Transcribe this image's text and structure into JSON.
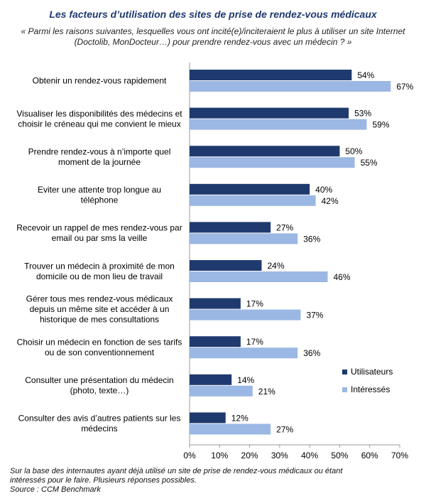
{
  "chart_data": {
    "type": "bar",
    "orientation": "horizontal",
    "title": "Les facteurs d’utilisation des sites de prise de rendez-vous médicaux",
    "subtitle": "« Parmi les raisons suivantes, lesquelles vous ont incité(e)/inciteraient le plus à utiliser un site Internet (Doctolib, MonDocteur…) pour prendre rendez-vous avec un médecin ? »",
    "categories": [
      [
        "Obtenir un rendez-vous rapidement"
      ],
      [
        "Visualiser les disponibilités des médecins et",
        "choisir le créneau qui me convient le mieux"
      ],
      [
        "Prendre rendez-vous à n’importe quel",
        "moment de la journée"
      ],
      [
        "Eviter une attente trop longue au",
        "téléphone"
      ],
      [
        "Recevoir un rappel de mes rendez-vous par",
        "email ou par sms la veille"
      ],
      [
        "Trouver un médecin à proximité de mon",
        "domicile ou de mon lieu de travail"
      ],
      [
        "Gérer tous mes rendez-vous médicaux",
        "depuis un même site et accéder à un",
        "historique de mes consultations"
      ],
      [
        "Choisir un médecin en fonction de ses tarifs",
        "ou de son conventionnement"
      ],
      [
        "Consulter une présentation du médecin",
        "(photo, texte…)"
      ],
      [
        "Consulter des avis d’autres patients sur les",
        "médecins"
      ]
    ],
    "series": [
      {
        "name": "Utilisateurs",
        "color": "#1f3a6e",
        "values": [
          54,
          53,
          50,
          40,
          27,
          24,
          17,
          17,
          14,
          12
        ]
      },
      {
        "name": "Intéressés",
        "color": "#9bb7e3",
        "values": [
          67,
          59,
          55,
          42,
          36,
          46,
          37,
          36,
          21,
          27
        ]
      }
    ],
    "xlim": [
      0,
      70
    ],
    "xticks": [
      0,
      10,
      20,
      30,
      40,
      50,
      60,
      70
    ],
    "value_suffix": "%",
    "legend": "right",
    "grid": false
  },
  "footnote": {
    "line1": "Sur la base des internautes ayant déjà utilisé un site de prise de rendez-vous médicaux ou étant",
    "line2": "intéressés pour le faire. Plusieurs réponses possibles.",
    "line3": "Source : CCM Benchmark"
  }
}
